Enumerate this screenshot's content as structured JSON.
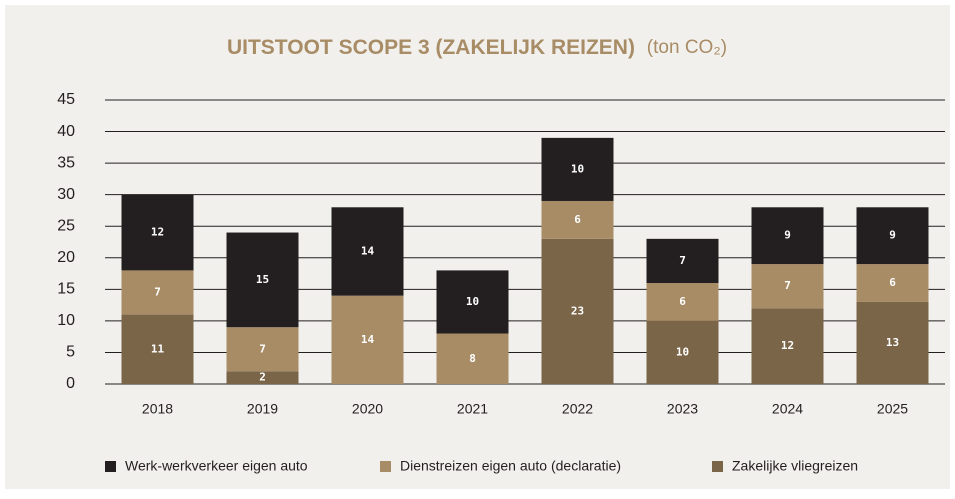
{
  "chart_data": {
    "type": "stacked_bar",
    "title": "UITSTOOT SCOPE 3 (ZAKELIJK REIZEN)",
    "unit": "(ton CO₂)",
    "categories": [
      "2018",
      "2019",
      "2020",
      "2021",
      "2022",
      "2023",
      "2024",
      "2025"
    ],
    "series": [
      {
        "name": "Werk-werkverkeer eigen auto",
        "color": "#231f20",
        "values": [
          12,
          15,
          14,
          10,
          10,
          7,
          9,
          9
        ]
      },
      {
        "name": "Dienstreizen eigen auto (declaratie)",
        "color": "#a88c66",
        "values": [
          7,
          7,
          14,
          8,
          6,
          6,
          7,
          6
        ]
      },
      {
        "name": "Zakelijke vliegreizen",
        "color": "#7a6549",
        "values": [
          11,
          2,
          null,
          null,
          23,
          10,
          12,
          13
        ]
      }
    ],
    "ylim": [
      0,
      45
    ],
    "yticks": [
      0,
      5,
      10,
      15,
      20,
      25,
      30,
      35,
      40,
      45
    ],
    "grid": true,
    "legend": "bottom"
  }
}
